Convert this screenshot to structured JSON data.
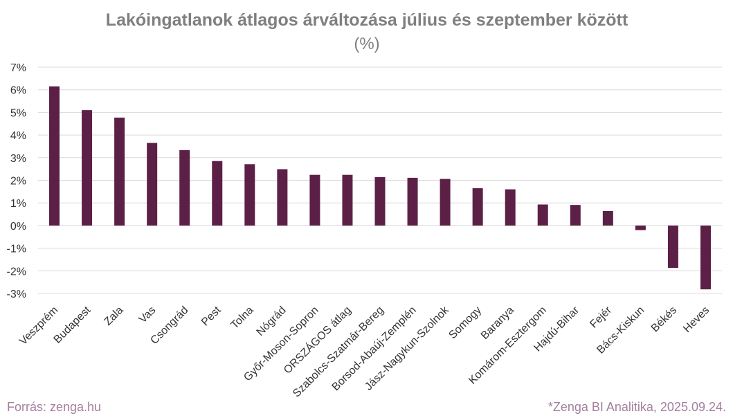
{
  "chart_data": {
    "type": "bar",
    "title": "Lakóingatlanok átlagos árváltozása július és szeptember között",
    "subtitle": "(%)",
    "xlabel": "",
    "ylabel": "",
    "ylim": [
      -3,
      7
    ],
    "yticks": [
      "7%",
      "6%",
      "5%",
      "4%",
      "3%",
      "2%",
      "1%",
      "0%",
      "-1%",
      "-2%",
      "-3%"
    ],
    "ytick_values": [
      7,
      6,
      5,
      4,
      3,
      2,
      1,
      0,
      -1,
      -2,
      -3
    ],
    "grid": true,
    "bar_color": "#5c2046",
    "categories": [
      "Veszprém",
      "Budapest",
      "Zala",
      "Vas",
      "Csongrád",
      "Pest",
      "Tolna",
      "Nógrád",
      "Győr-Moson-Sopron",
      "ORSZÁGOS átlag",
      "Szabolcs-Szatmár-Bereg",
      "Borsod-Abaúj-Zemplén",
      "Jász-Nagykun-Szolnok",
      "Somogy",
      "Baranya",
      "Komárom-Esztergom",
      "Hajdú-Bihar",
      "Fejér",
      "Bács-Kiskun",
      "Békés",
      "Heves"
    ],
    "values": [
      6.15,
      5.1,
      4.77,
      3.65,
      3.33,
      2.85,
      2.71,
      2.49,
      2.24,
      2.24,
      2.14,
      2.11,
      2.06,
      1.65,
      1.6,
      0.93,
      0.91,
      0.64,
      -0.2,
      -1.87,
      -2.82
    ]
  },
  "footer": {
    "source": "Forrás: zenga.hu",
    "credit": "*Zenga BI Analitika, 2025.09.24."
  }
}
